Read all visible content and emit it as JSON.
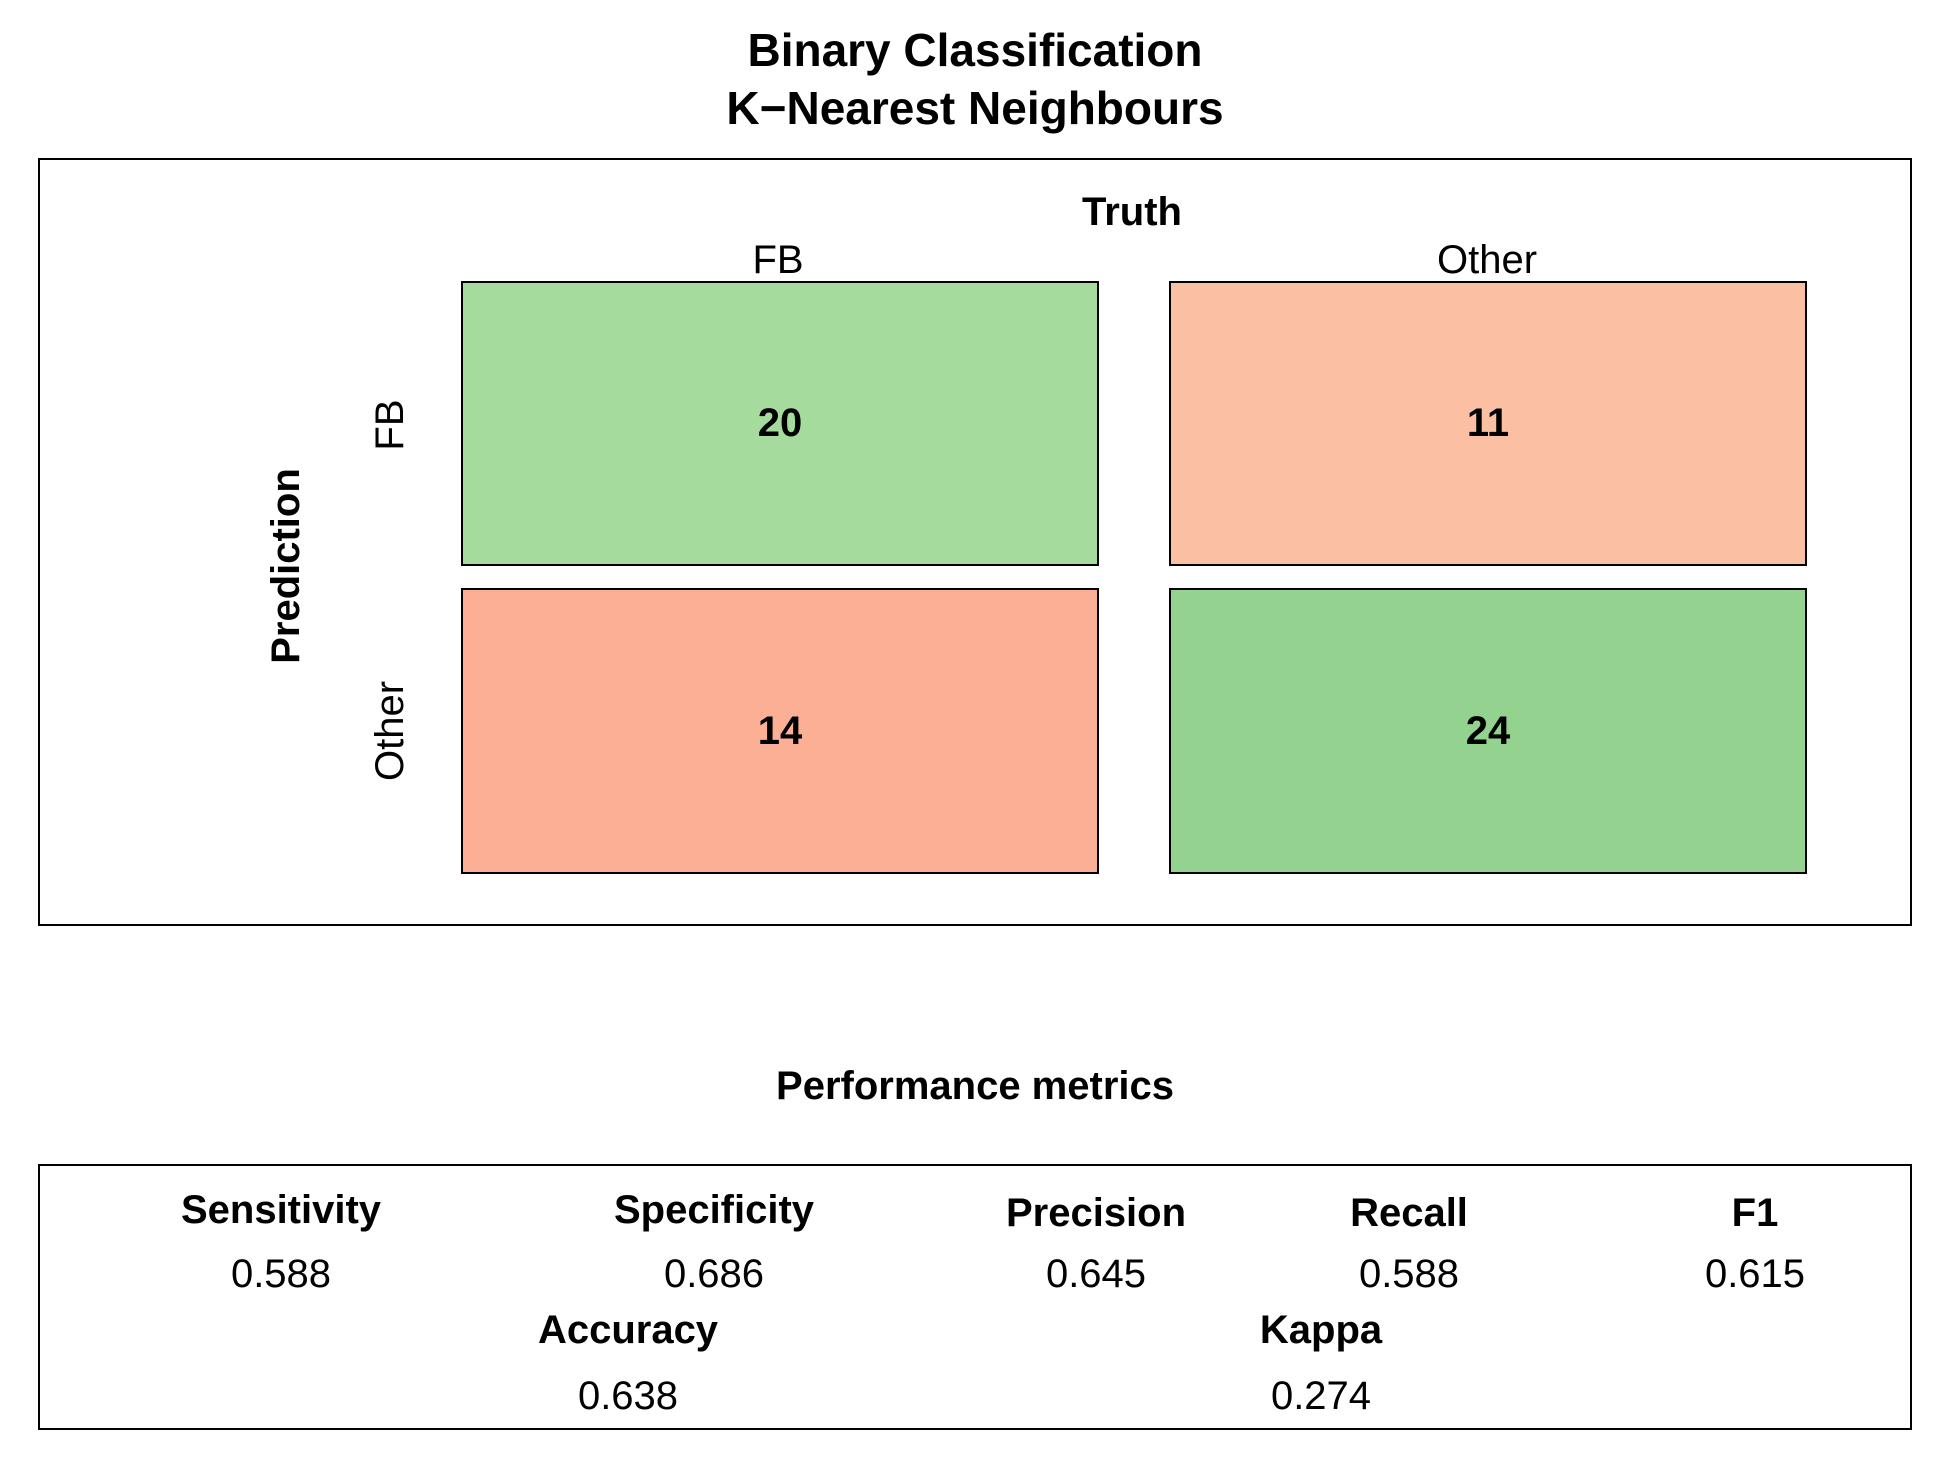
{
  "title_line1": "Binary Classification",
  "title_line2": "K−Nearest Neighbours",
  "chart_data": {
    "type": "table",
    "column_header": "Truth",
    "row_header": "Prediction",
    "columns": [
      "FB",
      "Other"
    ],
    "rows": [
      "FB",
      "Other"
    ],
    "cells": [
      [
        {
          "value": 20,
          "color": "#a6db9e"
        },
        {
          "value": 11,
          "color": "#fbbfa4"
        }
      ],
      [
        {
          "value": 14,
          "color": "#fbb095"
        },
        {
          "value": 24,
          "color": "#93d28f"
        }
      ]
    ]
  },
  "metrics": {
    "title": "Performance metrics",
    "sensitivity": {
      "label": "Sensitivity",
      "value": "0.588"
    },
    "specificity": {
      "label": "Specificity",
      "value": "0.686"
    },
    "precision": {
      "label": "Precision",
      "value": "0.645"
    },
    "recall": {
      "label": "Recall",
      "value": "0.588"
    },
    "f1": {
      "label": "F1",
      "value": "0.615"
    },
    "accuracy": {
      "label": "Accuracy",
      "value": "0.638"
    },
    "kappa": {
      "label": "Kappa",
      "value": "0.274"
    }
  }
}
